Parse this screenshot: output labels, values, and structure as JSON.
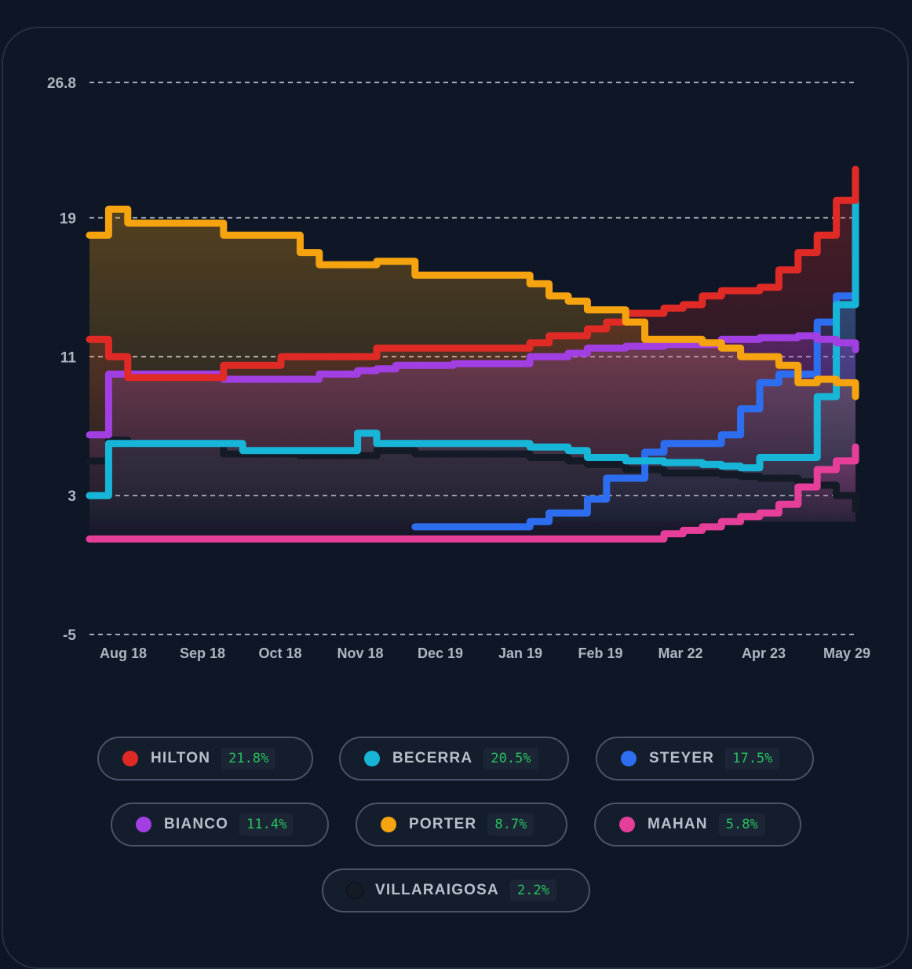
{
  "chart_data": {
    "type": "line",
    "y_ticks": [
      "26.8",
      "19",
      "11",
      "3",
      "-5"
    ],
    "y_tick_values": [
      26.8,
      19,
      11,
      3,
      -5
    ],
    "ylim": [
      -5,
      26.8
    ],
    "x_ticks": [
      "Aug 18",
      "Sep 18",
      "Oct 18",
      "Nov 18",
      "Dec 19",
      "Jan 19",
      "Feb 19",
      "Mar 22",
      "Apr 23",
      "May 29"
    ],
    "grid": "horizontal dashed",
    "series": [
      {
        "name": "HILTON",
        "color": "#e02a26",
        "values": [
          12.0,
          11.0,
          9.8,
          9.8,
          9.8,
          9.8,
          9.8,
          10.5,
          10.5,
          10.5,
          11.0,
          11.0,
          11.0,
          11.0,
          11.0,
          11.5,
          11.5,
          11.5,
          11.5,
          11.5,
          11.5,
          11.5,
          11.5,
          11.8,
          12.2,
          12.2,
          12.6,
          13.0,
          13.5,
          13.5,
          13.8,
          14.0,
          14.5,
          14.8,
          14.8,
          15.0,
          16.0,
          17.0,
          18.0,
          20.0,
          21.8
        ]
      },
      {
        "name": "BECERRA",
        "color": "#17b6d8",
        "values": [
          3.0,
          6.0,
          6.0,
          6.0,
          6.0,
          6.0,
          6.0,
          6.0,
          5.6,
          5.6,
          5.6,
          5.6,
          5.6,
          5.6,
          6.6,
          6.0,
          6.0,
          6.0,
          6.0,
          6.0,
          6.0,
          6.0,
          6.0,
          5.8,
          5.8,
          5.6,
          5.2,
          5.2,
          5.0,
          5.0,
          4.9,
          4.9,
          4.8,
          4.7,
          4.6,
          5.2,
          5.2,
          5.2,
          8.7,
          14.0,
          20.5
        ]
      },
      {
        "name": "STEYER",
        "color": "#2d6ef0",
        "values": [
          null,
          null,
          null,
          null,
          null,
          null,
          null,
          null,
          null,
          null,
          null,
          null,
          null,
          null,
          null,
          null,
          null,
          1.2,
          1.2,
          1.2,
          1.2,
          1.2,
          1.2,
          1.5,
          2.0,
          2.0,
          2.8,
          4.0,
          4.0,
          5.5,
          6.0,
          6.0,
          6.0,
          6.5,
          8.0,
          9.5,
          10.0,
          10.0,
          13.0,
          14.5,
          17.5
        ]
      },
      {
        "name": "BIANCO",
        "color": "#a23fe3",
        "values": [
          6.5,
          10.0,
          10.0,
          10.0,
          10.0,
          10.0,
          10.0,
          9.7,
          9.7,
          9.7,
          9.7,
          9.7,
          10.0,
          10.0,
          10.2,
          10.3,
          10.5,
          10.5,
          10.5,
          10.6,
          10.6,
          10.6,
          10.6,
          11.0,
          11.0,
          11.2,
          11.5,
          11.5,
          11.6,
          11.6,
          11.7,
          11.7,
          11.7,
          12.0,
          12.0,
          12.1,
          12.1,
          12.2,
          12.0,
          11.8,
          11.4
        ]
      },
      {
        "name": "PORTER",
        "color": "#f5a30f",
        "values": [
          18.0,
          19.5,
          18.7,
          18.7,
          18.7,
          18.7,
          18.7,
          18.0,
          18.0,
          18.0,
          18.0,
          17.0,
          16.3,
          16.3,
          16.3,
          16.5,
          16.5,
          15.7,
          15.7,
          15.7,
          15.7,
          15.7,
          15.7,
          15.2,
          14.5,
          14.2,
          13.7,
          13.7,
          13.0,
          12.0,
          12.0,
          12.0,
          11.8,
          11.5,
          11.0,
          11.0,
          10.5,
          9.5,
          9.7,
          9.5,
          8.7
        ]
      },
      {
        "name": "MAHAN",
        "color": "#e63f9a",
        "values": [
          0.5,
          0.5,
          0.5,
          0.5,
          0.5,
          0.5,
          0.5,
          0.5,
          0.5,
          0.5,
          0.5,
          0.5,
          0.5,
          0.5,
          0.5,
          0.5,
          0.5,
          0.5,
          0.5,
          0.5,
          0.5,
          0.5,
          0.5,
          0.5,
          0.5,
          0.5,
          0.5,
          0.5,
          0.5,
          0.5,
          0.8,
          1.0,
          1.2,
          1.5,
          1.8,
          2.0,
          2.5,
          3.5,
          4.5,
          5.0,
          5.8
        ]
      },
      {
        "name": "VILLARAIGOSA",
        "color": "#151b26",
        "values": [
          5.0,
          6.2,
          6.0,
          6.0,
          6.0,
          6.0,
          6.0,
          5.4,
          5.4,
          5.4,
          5.4,
          5.3,
          5.3,
          5.3,
          5.3,
          5.6,
          5.6,
          5.4,
          5.4,
          5.4,
          5.4,
          5.4,
          5.4,
          5.2,
          5.2,
          5.0,
          4.8,
          4.8,
          4.5,
          4.5,
          4.3,
          4.3,
          4.3,
          4.2,
          4.1,
          4.0,
          4.0,
          3.8,
          3.6,
          3.0,
          2.2
        ]
      }
    ],
    "legend": [
      {
        "name": "HILTON",
        "value": "21.8%",
        "color": "#e02a26"
      },
      {
        "name": "BECERRA",
        "value": "20.5%",
        "color": "#17b6d8"
      },
      {
        "name": "STEYER",
        "value": "17.5%",
        "color": "#2d6ef0"
      },
      {
        "name": "BIANCO",
        "value": "11.4%",
        "color": "#a23fe3"
      },
      {
        "name": "PORTER",
        "value": "8.7%",
        "color": "#f5a30f"
      },
      {
        "name": "MAHAN",
        "value": "5.8%",
        "color": "#e63f9a"
      },
      {
        "name": "VILLARAIGOSA",
        "value": "2.2%",
        "color": "#151b26"
      }
    ],
    "legend_placement": "bottom"
  }
}
